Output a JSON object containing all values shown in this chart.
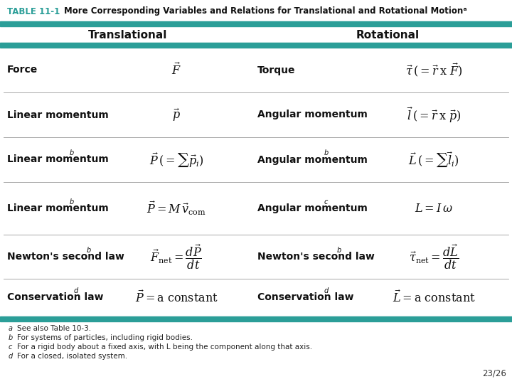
{
  "title_label": "TABLE 11-1",
  "title_text": "More Corresponding Variables and Relations for Translational and Rotational Motionᵃ",
  "teal_color": "#2B9E98",
  "bg_color": "#FFFFFF",
  "header_trans": "Translational",
  "header_rot": "Rotational",
  "rows": [
    {
      "left_label": "Force",
      "left_sup": "",
      "left_formula": "$\\vec{F}$",
      "right_label": "Torque",
      "right_sup": "",
      "right_formula": "$\\vec{\\tau}\\,(=\\vec{r}\\;\\mathrm{x}\\;\\vec{F})$"
    },
    {
      "left_label": "Linear momentum",
      "left_sup": "",
      "left_formula": "$\\vec{p}$",
      "right_label": "Angular momentum",
      "right_sup": "",
      "right_formula": "$\\vec{l}\\,(=\\vec{r}\\;\\mathrm{x}\\;\\vec{p})$"
    },
    {
      "left_label": "Linear momentum",
      "left_sup": "b",
      "left_formula": "$\\vec{P}\\,(=\\sum\\vec{p}_i)$",
      "right_label": "Angular momentum",
      "right_sup": "b",
      "right_formula": "$\\vec{L}\\,(=\\sum\\vec{l}_i)$"
    },
    {
      "left_label": "Linear momentum",
      "left_sup": "b",
      "left_formula": "$\\vec{P}=M\\,\\vec{v}_{\\mathrm{com}}$",
      "right_label": "Angular momentum",
      "right_sup": "c",
      "right_formula": "$L=I\\,\\omega$"
    },
    {
      "left_label": "Newton's second law",
      "left_sup": "b",
      "left_formula": "$\\vec{F}_{\\mathrm{net}}=\\dfrac{d\\vec{P}}{dt}$",
      "right_label": "Newton's second law",
      "right_sup": "b",
      "right_formula": "$\\vec{\\tau}_{\\mathrm{net}}=\\dfrac{d\\vec{L}}{dt}$"
    },
    {
      "left_label": "Conservation law",
      "left_sup": "d",
      "left_formula": "$\\vec{P}=\\mathrm{a\\ constant}$",
      "right_label": "Conservation law",
      "right_sup": "d",
      "right_formula": "$\\vec{L}=\\mathrm{a\\ constant}$"
    }
  ],
  "footnotes": [
    "a   See also Table 10-3.",
    "b   For systems of particles, including rigid bodies.",
    "c   For a rigid body about a fixed axis, with L being the component along that axis.",
    "d   For a closed, isolated system."
  ],
  "footnote_sups": [
    "a",
    "b",
    "c",
    "d"
  ],
  "page_num": "23/26"
}
